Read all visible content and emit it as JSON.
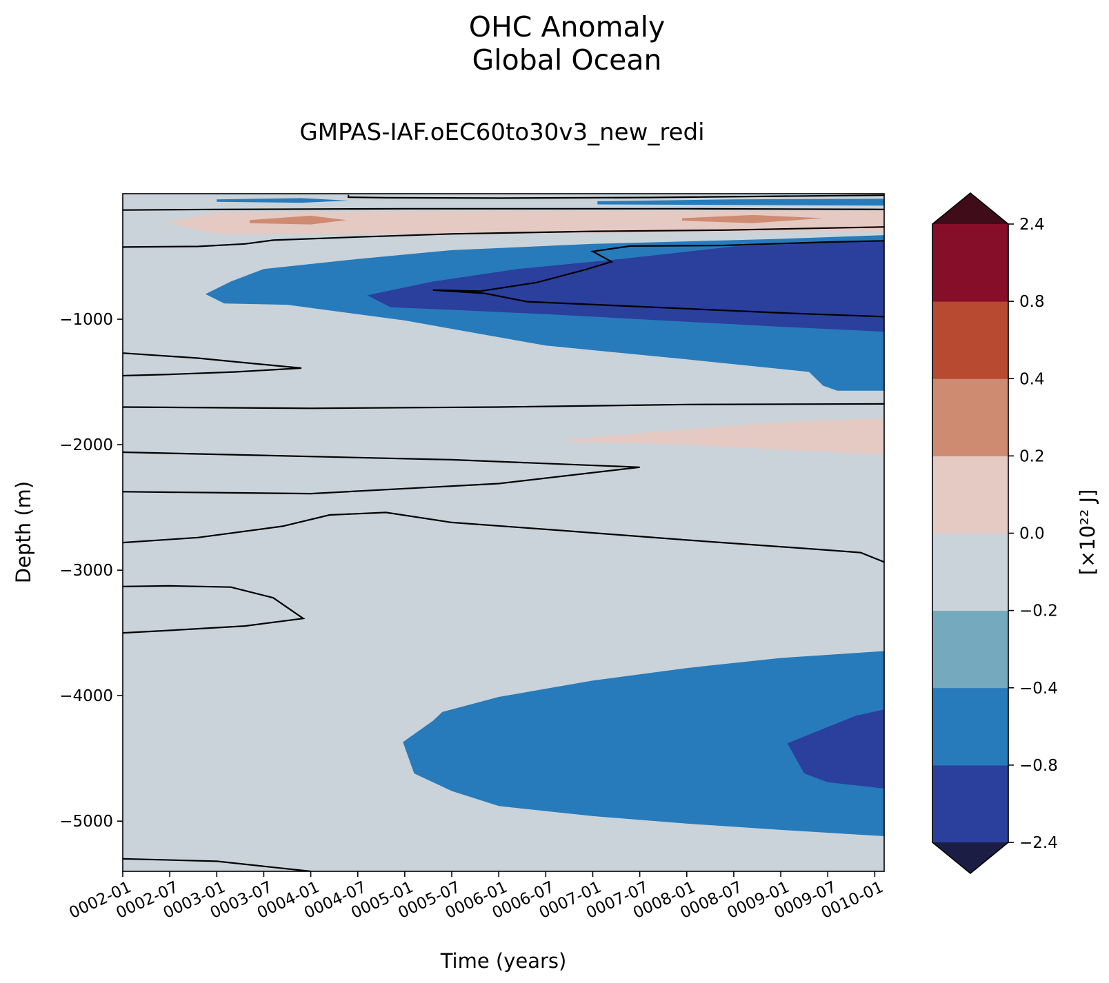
{
  "chart_data": {
    "type": "contourf",
    "title": "OHC Anomaly",
    "region": "Global Ocean",
    "subtitle": "GMPAS-IAF.oEC60to30v3_new_redi",
    "xlabel": "Time (years)",
    "ylabel": "Depth (m)",
    "x_ticks": [
      "0002-01",
      "0002-07",
      "0003-01",
      "0003-07",
      "0004-01",
      "0004-07",
      "0005-01",
      "0005-07",
      "0006-01",
      "0006-07",
      "0007-01",
      "0007-07",
      "0008-01",
      "0008-07",
      "0009-01",
      "0009-07",
      "0010-01"
    ],
    "xlim": [
      2.0,
      10.1
    ],
    "ylim": [
      -5400,
      0
    ],
    "y_ticks": [
      -1000,
      -2000,
      -3000,
      -4000,
      -5000
    ],
    "y_tick_labels": [
      "−1000",
      "−2000",
      "−3000",
      "−4000",
      "−5000"
    ],
    "colorbar": {
      "label": "[×10²² J]",
      "levels": [
        -2.4,
        -0.8,
        -0.4,
        -0.2,
        0.0,
        0.2,
        0.4,
        0.8,
        2.4
      ],
      "tick_labels": [
        "−2.4",
        "−0.8",
        "−0.4",
        "−0.2",
        "0.0",
        "0.2",
        "0.4",
        "0.8",
        "2.4"
      ],
      "extend": "both",
      "under_color": "#1c1d44",
      "over_color": "#400c1a",
      "colors": [
        "#2b3f9d",
        "#277bbb",
        "#75a9be",
        "#c9d3d9",
        "#e5c9c3",
        "#ce8b71",
        "#b74a30",
        "#870e29"
      ]
    },
    "regions": [
      {
        "level": 0.0,
        "color": "#c9d3d9",
        "desc": "background (-0.2 to 0.0)"
      },
      {
        "level": 0.0,
        "pts": [
          [
            2.0,
            -135
          ],
          [
            2.0,
            -425
          ],
          [
            3.3,
            -400
          ],
          [
            5.0,
            -320
          ],
          [
            7.0,
            -300
          ],
          [
            8.4,
            -290
          ],
          [
            10.1,
            -265
          ],
          [
            10.1,
            -130
          ],
          [
            8.0,
            -125
          ],
          [
            5.0,
            -125
          ],
          [
            3.0,
            -130
          ]
        ]
      },
      {
        "level": 0.2,
        "pts": [
          [
            2.45,
            -230
          ],
          [
            3.0,
            -150
          ],
          [
            6.0,
            -140
          ],
          [
            8.0,
            -135
          ],
          [
            10.1,
            -130
          ],
          [
            10.1,
            -300
          ],
          [
            8.0,
            -310
          ],
          [
            5.0,
            -320
          ],
          [
            3.0,
            -320
          ]
        ]
      },
      {
        "level": 0.4,
        "pts": [
          [
            3.35,
            -210
          ],
          [
            4.0,
            -175
          ],
          [
            4.38,
            -210
          ],
          [
            4.0,
            -245
          ],
          [
            3.35,
            -235
          ]
        ]
      },
      {
        "level": 0.4,
        "pts": [
          [
            7.95,
            -195
          ],
          [
            8.7,
            -170
          ],
          [
            9.45,
            -195
          ],
          [
            8.7,
            -235
          ],
          [
            7.95,
            -215
          ]
        ]
      },
      {
        "level": -0.4,
        "pts": [
          [
            3.0,
            -45
          ],
          [
            3.9,
            -35
          ],
          [
            4.4,
            -55
          ],
          [
            3.9,
            -72
          ],
          [
            3.0,
            -65
          ]
        ]
      },
      {
        "level": -0.4,
        "pts": [
          [
            7.05,
            -60
          ],
          [
            8.5,
            -45
          ],
          [
            10.1,
            -40
          ],
          [
            10.1,
            -95
          ],
          [
            8.5,
            -90
          ],
          [
            7.05,
            -85
          ]
        ]
      },
      {
        "level": 0.0,
        "pts": [
          [
            4.4,
            -10
          ],
          [
            10.1,
            -10
          ],
          [
            10.1,
            -12
          ],
          [
            7.6,
            -30
          ],
          [
            6.0,
            -35
          ],
          [
            4.8,
            -32
          ],
          [
            4.4,
            -28
          ]
        ]
      },
      {
        "level": -0.4,
        "pts": [
          [
            2.88,
            -800
          ],
          [
            3.15,
            -700
          ],
          [
            3.5,
            -600
          ],
          [
            4.5,
            -520
          ],
          [
            5.5,
            -450
          ],
          [
            7.0,
            -400
          ],
          [
            9.0,
            -360
          ],
          [
            10.1,
            -330
          ],
          [
            10.1,
            -1570
          ],
          [
            9.6,
            -1570
          ],
          [
            9.45,
            -1530
          ],
          [
            9.3,
            -1420
          ],
          [
            8.0,
            -1320
          ],
          [
            6.5,
            -1210
          ],
          [
            5.0,
            -1010
          ],
          [
            3.75,
            -885
          ],
          [
            3.08,
            -875
          ]
        ]
      },
      {
        "level": -0.8,
        "pts": [
          [
            4.6,
            -810
          ],
          [
            5.3,
            -700
          ],
          [
            6.2,
            -600
          ],
          [
            7.3,
            -520
          ],
          [
            8.5,
            -420
          ],
          [
            9.5,
            -390
          ],
          [
            10.1,
            -375
          ],
          [
            10.1,
            -1100
          ],
          [
            9.0,
            -1060
          ],
          [
            8.0,
            -1020
          ],
          [
            6.5,
            -960
          ],
          [
            5.5,
            -925
          ],
          [
            4.85,
            -905
          ]
        ]
      },
      {
        "level": 0.0,
        "pts": [
          [
            2.0,
            -1700
          ],
          [
            2.0,
            -2060
          ],
          [
            5.5,
            -2120
          ],
          [
            7.5,
            -2180
          ],
          [
            6.0,
            -2310
          ],
          [
            4.0,
            -2390
          ],
          [
            2.0,
            -2375
          ],
          [
            2.0,
            -2780
          ],
          [
            2.8,
            -2740
          ],
          [
            3.7,
            -2650
          ],
          [
            4.2,
            -2560
          ],
          [
            4.8,
            -2540
          ],
          [
            5.5,
            -2620
          ],
          [
            6.6,
            -2680
          ],
          [
            8.0,
            -2760
          ],
          [
            9.5,
            -2840
          ],
          [
            9.85,
            -2860
          ],
          [
            10.1,
            -2935
          ],
          [
            10.1,
            -1675
          ],
          [
            8.0,
            -1680
          ],
          [
            6.0,
            -1700
          ],
          [
            4.0,
            -1710
          ]
        ]
      },
      {
        "level": 0.2,
        "pts": [
          [
            6.72,
            -1960
          ],
          [
            7.3,
            -1920
          ],
          [
            8.3,
            -1860
          ],
          [
            9.0,
            -1820
          ],
          [
            10.1,
            -1790
          ],
          [
            10.1,
            -2080
          ],
          [
            9.0,
            -2040
          ],
          [
            8.0,
            -2000
          ],
          [
            6.72,
            -1975
          ]
        ]
      },
      {
        "level": 0.0,
        "pts": [
          [
            2.0,
            -1270
          ],
          [
            2.8,
            -1310
          ],
          [
            3.2,
            -1340
          ],
          [
            3.9,
            -1390
          ],
          [
            3.2,
            -1420
          ],
          [
            2.5,
            -1440
          ],
          [
            2.0,
            -1450
          ]
        ]
      },
      {
        "level": 0.0,
        "pts": [
          [
            2.0,
            -3130
          ],
          [
            2.5,
            -3125
          ],
          [
            3.15,
            -3135
          ],
          [
            3.6,
            -3220
          ],
          [
            3.92,
            -3385
          ],
          [
            3.3,
            -3445
          ],
          [
            2.5,
            -3480
          ],
          [
            2.0,
            -3500
          ]
        ]
      },
      {
        "level": -0.4,
        "pts": [
          [
            4.98,
            -4370
          ],
          [
            5.3,
            -4200
          ],
          [
            5.4,
            -4130
          ],
          [
            6.0,
            -4010
          ],
          [
            7.0,
            -3880
          ],
          [
            8.0,
            -3780
          ],
          [
            9.0,
            -3700
          ],
          [
            10.1,
            -3645
          ],
          [
            10.1,
            -5120
          ],
          [
            9.0,
            -5070
          ],
          [
            8.0,
            -5020
          ],
          [
            7.0,
            -4960
          ],
          [
            6.0,
            -4880
          ],
          [
            5.5,
            -4760
          ],
          [
            5.1,
            -4620
          ]
        ]
      },
      {
        "level": -0.8,
        "pts": [
          [
            9.07,
            -4380
          ],
          [
            9.4,
            -4280
          ],
          [
            9.8,
            -4160
          ],
          [
            10.1,
            -4110
          ],
          [
            10.1,
            -4740
          ],
          [
            9.5,
            -4690
          ],
          [
            9.25,
            -4620
          ]
        ]
      },
      {
        "level": 0.0,
        "pts": [
          [
            2.0,
            -5300
          ],
          [
            3.0,
            -5320
          ],
          [
            4.0,
            -5400
          ],
          [
            2.0,
            -5400
          ]
        ]
      }
    ],
    "contours": [
      [
        [
          4.4,
          -10
        ],
        [
          4.4,
          -28
        ],
        [
          4.8,
          -32
        ],
        [
          6.0,
          -35
        ],
        [
          7.6,
          -30
        ],
        [
          10.1,
          -12
        ]
      ],
      [
        [
          2.0,
          -130
        ],
        [
          3.0,
          -125
        ],
        [
          5.0,
          -120
        ],
        [
          8.0,
          -120
        ],
        [
          10.1,
          -125
        ]
      ],
      [
        [
          2.0,
          -425
        ],
        [
          2.8,
          -420
        ],
        [
          3.3,
          -400
        ],
        [
          3.6,
          -370
        ],
        [
          4.5,
          -345
        ],
        [
          5.5,
          -320
        ],
        [
          7.0,
          -300
        ],
        [
          8.4,
          -290
        ],
        [
          10.1,
          -265
        ]
      ],
      [
        [
          10.1,
          -375
        ],
        [
          9.5,
          -385
        ],
        [
          8.4,
          -412
        ],
        [
          7.4,
          -417
        ],
        [
          7.0,
          -460
        ],
        [
          7.2,
          -542
        ],
        [
          6.9,
          -610
        ],
        [
          6.4,
          -708
        ],
        [
          5.8,
          -777
        ],
        [
          5.3,
          -768
        ],
        [
          5.85,
          -794
        ],
        [
          6.3,
          -860
        ],
        [
          7.5,
          -900
        ],
        [
          9.0,
          -950
        ],
        [
          10.1,
          -980
        ]
      ],
      [
        [
          2.0,
          -1270
        ],
        [
          2.8,
          -1310
        ],
        [
          3.2,
          -1340
        ],
        [
          3.9,
          -1390
        ],
        [
          3.2,
          -1420
        ],
        [
          2.5,
          -1440
        ],
        [
          2.0,
          -1450
        ]
      ],
      [
        [
          2.0,
          -1700
        ],
        [
          4.0,
          -1710
        ],
        [
          6.0,
          -1700
        ],
        [
          8.0,
          -1680
        ],
        [
          10.1,
          -1675
        ]
      ],
      [
        [
          2.0,
          -2060
        ],
        [
          5.5,
          -2120
        ],
        [
          7.5,
          -2180
        ],
        [
          6.0,
          -2310
        ],
        [
          4.0,
          -2390
        ],
        [
          2.0,
          -2375
        ]
      ],
      [
        [
          2.0,
          -2780
        ],
        [
          2.8,
          -2740
        ],
        [
          3.7,
          -2650
        ],
        [
          4.2,
          -2560
        ],
        [
          4.8,
          -2540
        ],
        [
          5.5,
          -2620
        ],
        [
          6.6,
          -2680
        ],
        [
          8.0,
          -2760
        ],
        [
          9.5,
          -2840
        ],
        [
          9.85,
          -2860
        ],
        [
          10.1,
          -2935
        ]
      ],
      [
        [
          2.0,
          -3130
        ],
        [
          2.5,
          -3125
        ],
        [
          3.15,
          -3135
        ],
        [
          3.6,
          -3220
        ],
        [
          3.92,
          -3385
        ],
        [
          3.3,
          -3445
        ],
        [
          2.5,
          -3480
        ],
        [
          2.0,
          -3500
        ]
      ],
      [
        [
          2.0,
          -5300
        ],
        [
          3.0,
          -5320
        ],
        [
          4.0,
          -5400
        ]
      ]
    ]
  }
}
